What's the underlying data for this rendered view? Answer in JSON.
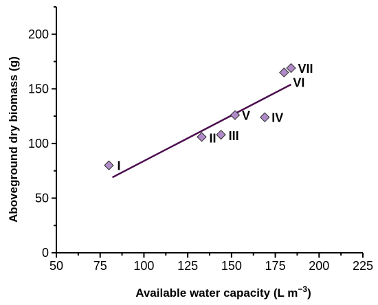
{
  "chart_data": {
    "type": "scatter",
    "title": "",
    "xlabel": "Available water capacity (L m",
    "xlabel_sup": "−3",
    "xlabel_close": ")",
    "ylabel": "Aboveground dry biomass (g)",
    "xlim": [
      50,
      225
    ],
    "ylim": [
      0,
      225
    ],
    "xticks": [
      50,
      75,
      100,
      125,
      150,
      175,
      200,
      225
    ],
    "yticks": [
      0,
      50,
      100,
      150,
      200
    ],
    "grid": false,
    "marker_color": "#b08bc8",
    "line_color": "#4b0f4f",
    "points": [
      {
        "label": "I",
        "x": 80,
        "y": 80
      },
      {
        "label": "II",
        "x": 133,
        "y": 106
      },
      {
        "label": "III",
        "x": 144,
        "y": 108
      },
      {
        "label": "V",
        "x": 152,
        "y": 126
      },
      {
        "label": "IV",
        "x": 169,
        "y": 124
      },
      {
        "label": "VI",
        "x": 180,
        "y": 165
      },
      {
        "label": "VII",
        "x": 184,
        "y": 169
      }
    ],
    "fit_line": {
      "x": [
        82,
        184
      ],
      "y": [
        69,
        154
      ]
    }
  }
}
